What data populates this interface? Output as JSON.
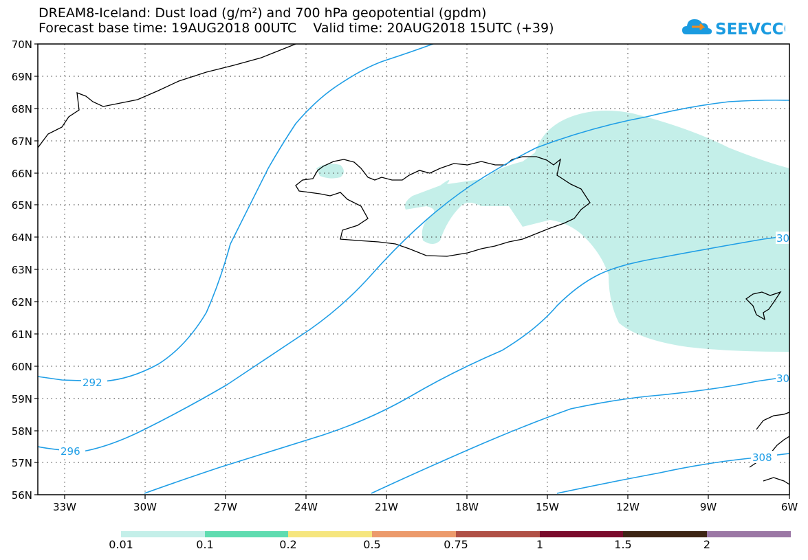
{
  "header": {
    "title_line1": "DREAM8-Iceland: Dust load (g/m²) and 700 hPa geopotential (gpdm)",
    "title_line2": "Forecast base time: 19AUG2018 00UTC    Valid time: 20AUG2018 15UTC (+39)",
    "logo_text": "SEEVCCC",
    "logo_color": "#1a9be0"
  },
  "map": {
    "lat_labels": [
      "70N",
      "69N",
      "68N",
      "67N",
      "66N",
      "65N",
      "64N",
      "63N",
      "62N",
      "61N",
      "60N",
      "59N",
      "58N",
      "57N",
      "56N"
    ],
    "lon_labels": [
      "33W",
      "30W",
      "27W",
      "24W",
      "21W",
      "18W",
      "15W",
      "12W",
      "9W",
      "6W"
    ],
    "dust_color": "#c4efe9",
    "contour_color": "#1f9ee6",
    "contour_labels": [
      "292",
      "296",
      "30",
      "30",
      "308"
    ]
  },
  "colorbar": {
    "colors": [
      "#c4efe9",
      "#5fdcb0",
      "#f6e67e",
      "#ec9a6b",
      "#b05046",
      "#7a0b2c",
      "#3d2514",
      "#9b77a5"
    ],
    "labels": [
      "0.01",
      "0.1",
      "0.2",
      "0.5",
      "0.75",
      "1",
      "1.5",
      "2"
    ]
  }
}
